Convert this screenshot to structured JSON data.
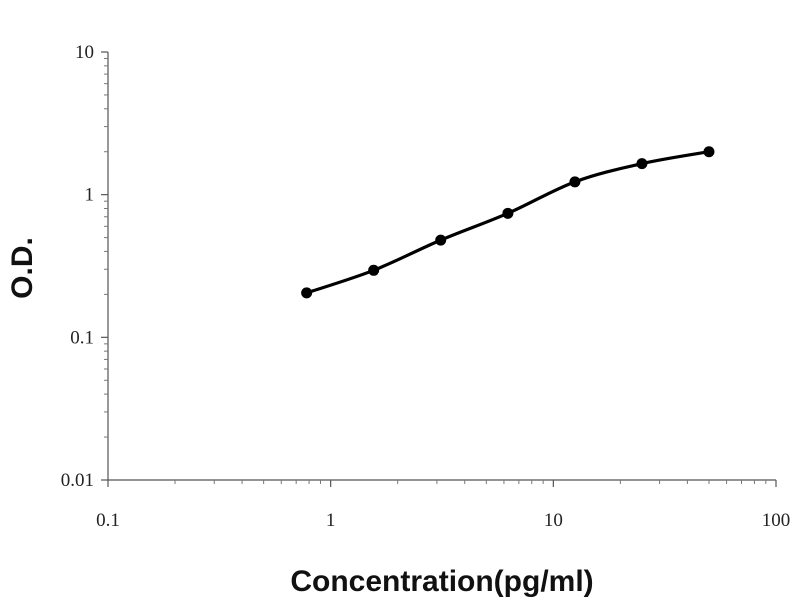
{
  "chart_data": {
    "type": "line",
    "title": "",
    "xlabel": "Concentration(pg/ml)",
    "ylabel": "O.D.",
    "x_scale": "log",
    "y_scale": "log",
    "xlim": [
      0.1,
      100
    ],
    "ylim": [
      0.01,
      10
    ],
    "x_ticks": [
      "0.1",
      "1",
      "10",
      "100"
    ],
    "y_ticks": [
      "10",
      "1",
      "0.1",
      "0.01"
    ],
    "grid": false,
    "legend": "none",
    "colors": {
      "line": "#000000",
      "marker": "#000000"
    },
    "series": [
      {
        "x": [
          0.78,
          1.56,
          3.12,
          6.25,
          12.5,
          25,
          50
        ],
        "y": [
          0.205,
          0.295,
          0.48,
          0.74,
          1.23,
          1.65,
          2.0
        ]
      }
    ]
  }
}
